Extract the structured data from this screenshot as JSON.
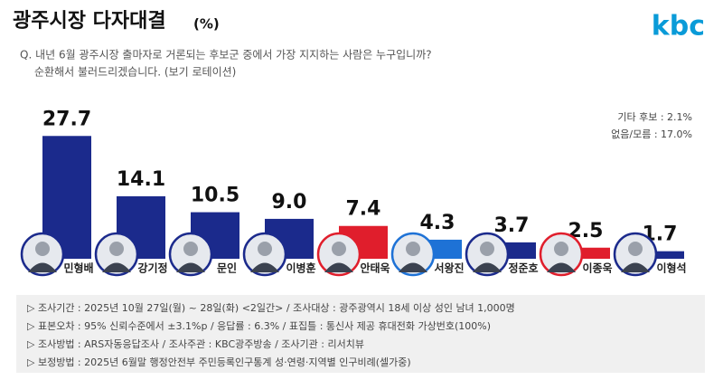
{
  "chart_data": {
    "type": "bar",
    "title": "광주시장 다자대결",
    "unit": "(%)",
    "logo": "kbc",
    "question": [
      "Q. 내년 6월 광주시장 출마자로 거론되는 후보군 중에서 가장 지지하는 사람은 누구입니까?",
      "순환해서 불러드리겠습니다. (보기 로테이션)"
    ],
    "categories": [
      "민형배",
      "강기정",
      "문인",
      "이병훈",
      "안태욱",
      "서왕진",
      "정준호",
      "이종욱",
      "이형석"
    ],
    "values": [
      27.7,
      14.1,
      10.5,
      9.0,
      7.4,
      4.3,
      3.7,
      2.5,
      1.7
    ],
    "value_labels": [
      "27.7",
      "14.1",
      "10.5",
      "9.0",
      "7.4",
      "4.3",
      "3.7",
      "2.5",
      "1.7"
    ],
    "colors": [
      "#1b2a8c",
      "#1b2a8c",
      "#1b2a8c",
      "#1b2a8c",
      "#e01e2c",
      "#1e72d6",
      "#1b2a8c",
      "#e01e2c",
      "#1b2a8c"
    ],
    "notes": [
      "기타 후보 : 2.1%",
      "없음/모름 : 17.0%"
    ],
    "footer": [
      "▷ 조사기간 : 2025년 10월 27일(월) ~ 28일(화) <2일간> / 조사대상 : 광주광역시 18세 이상 성인 남녀 1,000명",
      "▷ 표본오차 : 95% 신뢰수준에서 ±3.1%p / 응답률 : 6.3% / 표집틀 : 통신사 제공 휴대전화 가상번호(100%)",
      "▷ 조사방법 : ARS자동응답조사 / 조사주관 : KBC광주방송 / 조사기관 : 리서치뷰",
      "▷ 보정방법 : 2025년 6월말 행정안전부 주민등록인구통계 성·연령·지역별 인구비례(셀가중)"
    ]
  }
}
